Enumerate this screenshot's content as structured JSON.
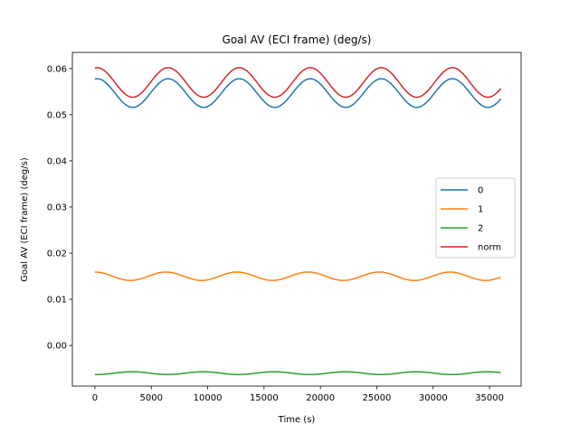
{
  "chart_data": {
    "type": "line",
    "title": "Goal AV (ECI frame) (deg/s)",
    "xlabel": "Time (s)",
    "ylabel": "Goal AV (ECI frame) (deg/s)",
    "xlim": [
      -2000,
      37800
    ],
    "ylim": [
      -0.0088,
      0.0635
    ],
    "xticks": [
      0,
      5000,
      10000,
      15000,
      20000,
      25000,
      30000,
      35000
    ],
    "yticks": [
      0.0,
      0.01,
      0.02,
      0.03,
      0.04,
      0.05,
      0.06
    ],
    "ytick_labels": [
      "0.00",
      "0.01",
      "0.02",
      "0.03",
      "0.04",
      "0.05",
      "0.06"
    ],
    "legend_position": "center-right",
    "grid": false,
    "x_range": [
      0,
      36000
    ],
    "period": 6300,
    "series": [
      {
        "name": "0",
        "color": "#1f77b4",
        "mean": 0.0547,
        "amplitude": 0.0031,
        "phase_peak": 200
      },
      {
        "name": "1",
        "color": "#ff7f0e",
        "mean": 0.015,
        "amplitude": 0.0009,
        "phase_peak": 0
      },
      {
        "name": "2",
        "color": "#2ca02c",
        "mean": -0.006,
        "amplitude": 0.0003,
        "phase_peak": 3300
      },
      {
        "name": "norm",
        "color": "#d62728",
        "mean": 0.057,
        "amplitude": 0.0032,
        "phase_peak": 200
      }
    ]
  }
}
